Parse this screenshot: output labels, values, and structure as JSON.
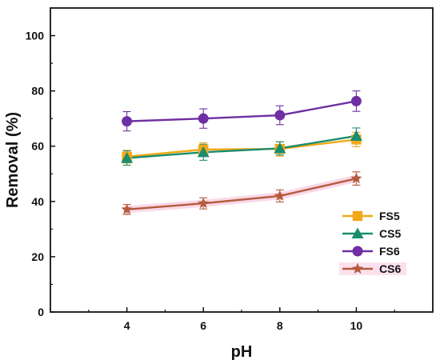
{
  "chart_data": {
    "type": "line",
    "xlabel": "pH",
    "ylabel": "Removal (%)",
    "x": [
      4,
      6,
      8,
      10
    ],
    "xlim": [
      2,
      12
    ],
    "ylim": [
      0,
      110
    ],
    "xticks": [
      "4",
      "6",
      "8",
      "10"
    ],
    "yticks": [
      "0",
      "20",
      "40",
      "60",
      "80",
      "100"
    ],
    "legend_position": "bottom-right",
    "series": [
      {
        "name": "FS5",
        "values": [
          56.2,
          58.8,
          59.0,
          62.4
        ],
        "errors": [
          2.3,
          2.4,
          2.6,
          2.6
        ],
        "color": "#f2a818",
        "marker": "square"
      },
      {
        "name": "CS5",
        "values": [
          55.7,
          57.8,
          59.2,
          63.7
        ],
        "errors": [
          2.6,
          2.9,
          2.4,
          2.9
        ],
        "color": "#1b8c6e",
        "marker": "triangle"
      },
      {
        "name": "FS6",
        "values": [
          69.0,
          70.0,
          71.2,
          76.3
        ],
        "errors": [
          3.5,
          3.5,
          3.4,
          3.7
        ],
        "color": "#6f2fa2",
        "marker": "circle"
      },
      {
        "name": "CS6",
        "values": [
          37.1,
          39.3,
          42.0,
          48.3
        ],
        "errors": [
          1.8,
          2.0,
          2.2,
          2.4
        ],
        "color": "#b55a3c",
        "marker": "star"
      }
    ]
  }
}
